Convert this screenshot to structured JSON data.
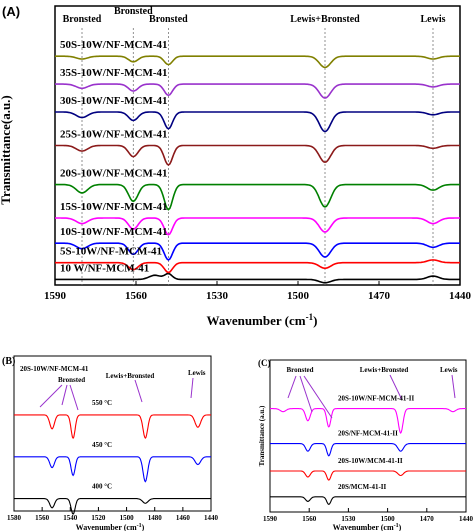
{
  "chart_data": [
    {
      "panel_label": "(A)",
      "type": "line",
      "xlabel": "Wavenumber (cm",
      "xlabel_sup": "-1",
      "xlabel_close": ")",
      "ylabel": "Transmittance(a.u.)",
      "xlim": [
        1590,
        1440
      ],
      "x_ticks": [
        "1590",
        "1560",
        "1530",
        "1500",
        "1470",
        "1440"
      ],
      "site_labels": [
        {
          "text": "Bronsted",
          "x": 1580
        },
        {
          "text": "Bronsted",
          "x": 1561
        },
        {
          "text": "Bronsted",
          "x": 1548
        },
        {
          "text": "Lewis+Bronsted",
          "x": 1490
        },
        {
          "text": "Lewis",
          "x": 1450
        }
      ],
      "series": [
        {
          "name": "10 W/NF-MCM-41",
          "color": "#000000",
          "baseline": 0.02,
          "peaks": [
            {
              "x": 1553,
              "d": -0.015,
              "w": 3
            },
            {
              "x": 1548,
              "d": -0.02,
              "w": 2
            },
            {
              "x": 1490,
              "d": 0.012,
              "w": 3
            },
            {
              "x": 1450,
              "d": -0.012,
              "w": 3
            }
          ]
        },
        {
          "name": "5S-10W/NF-MCM-41",
          "color": "#ff0000",
          "baseline": 0.08,
          "peaks": [
            {
              "x": 1561,
              "d": 0.025,
              "w": 2.5
            },
            {
              "x": 1548,
              "d": 0.035,
              "w": 2.2
            },
            {
              "x": 1490,
              "d": 0.02,
              "w": 3
            },
            {
              "x": 1450,
              "d": -0.01,
              "w": 3
            }
          ]
        },
        {
          "name": "10S-10W/NF-MCM-41",
          "color": "#0000ff",
          "baseline": 0.15,
          "peaks": [
            {
              "x": 1580,
              "d": 0.02,
              "w": 3
            },
            {
              "x": 1561,
              "d": 0.04,
              "w": 2.5
            },
            {
              "x": 1548,
              "d": 0.06,
              "w": 2.2
            },
            {
              "x": 1490,
              "d": 0.05,
              "w": 3
            },
            {
              "x": 1450,
              "d": 0.015,
              "w": 3
            }
          ]
        },
        {
          "name": "15S-10W/NF-MCM-41",
          "color": "#ff00ff",
          "baseline": 0.24,
          "peaks": [
            {
              "x": 1580,
              "d": 0.02,
              "w": 3
            },
            {
              "x": 1561,
              "d": 0.04,
              "w": 2.5
            },
            {
              "x": 1548,
              "d": 0.06,
              "w": 2.2
            },
            {
              "x": 1490,
              "d": 0.05,
              "w": 3
            },
            {
              "x": 1450,
              "d": 0.02,
              "w": 3
            }
          ]
        },
        {
          "name": "20S-10W/NF-MCM-41",
          "color": "#008000",
          "baseline": 0.36,
          "peaks": [
            {
              "x": 1580,
              "d": 0.03,
              "w": 3
            },
            {
              "x": 1561,
              "d": 0.06,
              "w": 2.5
            },
            {
              "x": 1548,
              "d": 0.09,
              "w": 2.2
            },
            {
              "x": 1490,
              "d": 0.08,
              "w": 3
            },
            {
              "x": 1450,
              "d": 0.02,
              "w": 3
            }
          ]
        },
        {
          "name": "25S-10W/NF-MCM-41",
          "color": "#8b1a1a",
          "baseline": 0.5,
          "peaks": [
            {
              "x": 1580,
              "d": 0.02,
              "w": 3
            },
            {
              "x": 1561,
              "d": 0.04,
              "w": 2.5
            },
            {
              "x": 1548,
              "d": 0.07,
              "w": 2.2
            },
            {
              "x": 1490,
              "d": 0.06,
              "w": 3
            },
            {
              "x": 1450,
              "d": 0.01,
              "w": 3
            }
          ]
        },
        {
          "name": "30S-10W/NF-MCM-41",
          "color": "#000080",
          "baseline": 0.62,
          "peaks": [
            {
              "x": 1580,
              "d": 0.02,
              "w": 3
            },
            {
              "x": 1561,
              "d": 0.03,
              "w": 2.5
            },
            {
              "x": 1548,
              "d": 0.06,
              "w": 2.2
            },
            {
              "x": 1490,
              "d": 0.07,
              "w": 3
            },
            {
              "x": 1450,
              "d": 0.01,
              "w": 3
            }
          ]
        },
        {
          "name": "35S-10W/NF-MCM-41",
          "color": "#9932cc",
          "baseline": 0.72,
          "peaks": [
            {
              "x": 1580,
              "d": 0.015,
              "w": 3
            },
            {
              "x": 1561,
              "d": 0.025,
              "w": 2.5
            },
            {
              "x": 1548,
              "d": 0.04,
              "w": 2.2
            },
            {
              "x": 1490,
              "d": 0.05,
              "w": 3
            },
            {
              "x": 1450,
              "d": 0.01,
              "w": 3
            }
          ]
        },
        {
          "name": "50S-10W/NF-MCM-41",
          "color": "#808000",
          "baseline": 0.82,
          "peaks": [
            {
              "x": 1580,
              "d": 0.01,
              "w": 3
            },
            {
              "x": 1561,
              "d": 0.02,
              "w": 2.5
            },
            {
              "x": 1548,
              "d": 0.03,
              "w": 2.2
            },
            {
              "x": 1490,
              "d": 0.04,
              "w": 3
            },
            {
              "x": 1450,
              "d": 0.01,
              "w": 3
            }
          ]
        }
      ]
    },
    {
      "panel_label": "(B)",
      "type": "line",
      "xlabel": "Wavenumber (cm",
      "xlabel_sup": "-1",
      "xlabel_close": ")",
      "xlim": [
        1590,
        1440
      ],
      "x_ticks": [
        "1580",
        "1560",
        "1540",
        "1520",
        "1500",
        "1480",
        "1460",
        "1440"
      ],
      "annotations": [
        "20S-10W/NF-MCM-41",
        "Bronsted",
        "Lewis+Bronsted",
        "Lewis"
      ],
      "series": [
        {
          "name": "400 °C",
          "color": "#000000",
          "baseline": 0.08,
          "peaks": [
            {
              "x": 1561,
              "d": 0.06,
              "w": 2.5
            },
            {
              "x": 1545,
              "d": 0.1,
              "w": 2.2
            },
            {
              "x": 1490,
              "d": 0.03,
              "w": 3
            }
          ]
        },
        {
          "name": "450 °C",
          "color": "#0000ff",
          "baseline": 0.35,
          "peaks": [
            {
              "x": 1561,
              "d": 0.07,
              "w": 2.5
            },
            {
              "x": 1545,
              "d": 0.12,
              "w": 2.2
            },
            {
              "x": 1490,
              "d": 0.16,
              "w": 2.5
            },
            {
              "x": 1450,
              "d": 0.05,
              "w": 3
            }
          ]
        },
        {
          "name": "550 °C",
          "color": "#ff0000",
          "baseline": 0.62,
          "peaks": [
            {
              "x": 1561,
              "d": 0.09,
              "w": 2.5
            },
            {
              "x": 1545,
              "d": 0.15,
              "w": 2.2
            },
            {
              "x": 1490,
              "d": 0.15,
              "w": 2.5
            },
            {
              "x": 1450,
              "d": 0.08,
              "w": 3
            }
          ]
        }
      ]
    },
    {
      "panel_label": "(C)",
      "type": "line",
      "xlabel": "Wavenumber (cm",
      "xlabel_sup": "-1",
      "xlabel_close": ")",
      "ylabel": "Transmittance (a.u.)",
      "xlim": [
        1590,
        1440
      ],
      "x_ticks": [
        "1590",
        "1560",
        "1530",
        "1500",
        "1470",
        "1440"
      ],
      "annotations": [
        "Bronsted",
        "Lewis+Bronsted",
        "Lewis"
      ],
      "series": [
        {
          "name": "20S/MCM-41-II",
          "color": "#000000",
          "baseline": 0.1,
          "peaks": [
            {
              "x": 1561,
              "d": 0.03,
              "w": 2.5
            },
            {
              "x": 1545,
              "d": 0.05,
              "w": 2.2
            }
          ]
        },
        {
          "name": "20S-10W/MCM-41-II",
          "color": "#ff0000",
          "baseline": 0.27,
          "peaks": [
            {
              "x": 1561,
              "d": 0.04,
              "w": 2.5
            },
            {
              "x": 1545,
              "d": 0.06,
              "w": 2.2
            },
            {
              "x": 1490,
              "d": 0.03,
              "w": 3
            }
          ]
        },
        {
          "name": "20S/NF-MCM-41-II",
          "color": "#0000ff",
          "baseline": 0.45,
          "peaks": [
            {
              "x": 1561,
              "d": 0.05,
              "w": 2.5
            },
            {
              "x": 1545,
              "d": 0.08,
              "w": 2.2
            },
            {
              "x": 1490,
              "d": 0.05,
              "w": 3
            }
          ]
        },
        {
          "name": "20S-10W/NF-MCM-41-II",
          "color": "#ff00ff",
          "baseline": 0.68,
          "peaks": [
            {
              "x": 1580,
              "d": 0.02,
              "w": 3
            },
            {
              "x": 1561,
              "d": 0.08,
              "w": 2.5
            },
            {
              "x": 1545,
              "d": 0.12,
              "w": 2.2
            },
            {
              "x": 1490,
              "d": 0.16,
              "w": 2.5
            },
            {
              "x": 1450,
              "d": 0.02,
              "w": 3
            }
          ]
        }
      ]
    }
  ]
}
